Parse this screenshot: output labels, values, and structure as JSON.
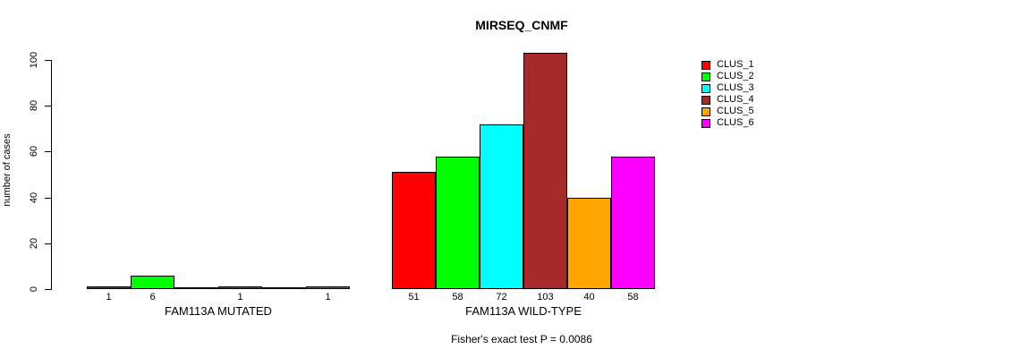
{
  "page": {
    "title": "MIRSEQ_CNMF",
    "footer": "Fisher's exact test P = 0.0086"
  },
  "chart_data": {
    "type": "bar",
    "title": "MIRSEQ_CNMF",
    "xlabel": "",
    "ylabel": "number of cases",
    "ylim": [
      0,
      100
    ],
    "yticks": [
      0,
      20,
      40,
      60,
      80,
      100
    ],
    "grid": false,
    "legend_position": "top-right",
    "legend": [
      {
        "label": "CLUS_1",
        "color": "#FF0000"
      },
      {
        "label": "CLUS_2",
        "color": "#00FF00"
      },
      {
        "label": "CLUS_3",
        "color": "#00FFFF"
      },
      {
        "label": "CLUS_4",
        "color": "#A52A2A"
      },
      {
        "label": "CLUS_5",
        "color": "#FFA500"
      },
      {
        "label": "CLUS_6",
        "color": "#FF00FF"
      }
    ],
    "groups": [
      {
        "label": "FAM113A MUTATED",
        "series": [
          "CLUS_1",
          "CLUS_2",
          "CLUS_3",
          "CLUS_4",
          "CLUS_5",
          "CLUS_6"
        ],
        "values": [
          1,
          6,
          0,
          1,
          0,
          1
        ],
        "bar_labels": [
          "1",
          "6",
          "",
          "1",
          "",
          "1"
        ]
      },
      {
        "label": "FAM113A WILD-TYPE",
        "series": [
          "CLUS_1",
          "CLUS_2",
          "CLUS_3",
          "CLUS_4",
          "CLUS_5",
          "CLUS_6"
        ],
        "values": [
          51,
          58,
          72,
          103,
          40,
          58
        ],
        "bar_labels": [
          "51",
          "58",
          "72",
          "103",
          "40",
          "58"
        ]
      }
    ],
    "annotation": "Fisher's exact test P = 0.0086"
  }
}
